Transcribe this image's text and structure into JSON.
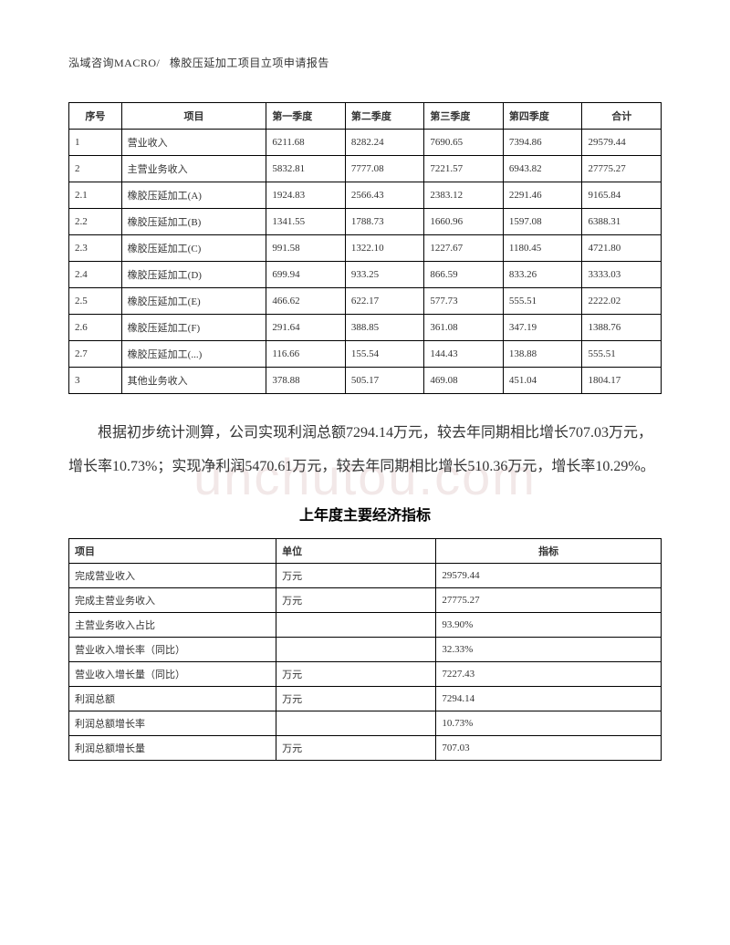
{
  "header": {
    "company": "泓域咨询MACRO/",
    "title": "橡胶压延加工项目立项申请报告"
  },
  "watermark": "unchutou.com",
  "table1": {
    "headers": {
      "seq": "序号",
      "item": "项目",
      "q1": "第一季度",
      "q2": "第二季度",
      "q3": "第三季度",
      "q4": "第四季度",
      "total": "合计"
    },
    "rows": [
      {
        "seq": "1",
        "item": "营业收入",
        "q1": "6211.68",
        "q2": "8282.24",
        "q3": "7690.65",
        "q4": "7394.86",
        "total": "29579.44"
      },
      {
        "seq": "2",
        "item": "主营业务收入",
        "q1": "5832.81",
        "q2": "7777.08",
        "q3": "7221.57",
        "q4": "6943.82",
        "total": "27775.27"
      },
      {
        "seq": "2.1",
        "item": "橡胶压延加工(A)",
        "q1": "1924.83",
        "q2": "2566.43",
        "q3": "2383.12",
        "q4": "2291.46",
        "total": "9165.84"
      },
      {
        "seq": "2.2",
        "item": "橡胶压延加工(B)",
        "q1": "1341.55",
        "q2": "1788.73",
        "q3": "1660.96",
        "q4": "1597.08",
        "total": "6388.31"
      },
      {
        "seq": "2.3",
        "item": "橡胶压延加工(C)",
        "q1": "991.58",
        "q2": "1322.10",
        "q3": "1227.67",
        "q4": "1180.45",
        "total": "4721.80"
      },
      {
        "seq": "2.4",
        "item": "橡胶压延加工(D)",
        "q1": "699.94",
        "q2": "933.25",
        "q3": "866.59",
        "q4": "833.26",
        "total": "3333.03"
      },
      {
        "seq": "2.5",
        "item": "橡胶压延加工(E)",
        "q1": "466.62",
        "q2": "622.17",
        "q3": "577.73",
        "q4": "555.51",
        "total": "2222.02"
      },
      {
        "seq": "2.6",
        "item": "橡胶压延加工(F)",
        "q1": "291.64",
        "q2": "388.85",
        "q3": "361.08",
        "q4": "347.19",
        "total": "1388.76"
      },
      {
        "seq": "2.7",
        "item": "橡胶压延加工(...)",
        "q1": "116.66",
        "q2": "155.54",
        "q3": "144.43",
        "q4": "138.88",
        "total": "555.51"
      },
      {
        "seq": "3",
        "item": "其他业务收入",
        "q1": "378.88",
        "q2": "505.17",
        "q3": "469.08",
        "q4": "451.04",
        "total": "1804.17"
      }
    ]
  },
  "paragraph": "根据初步统计测算，公司实现利润总额7294.14万元，较去年同期相比增长707.03万元，增长率10.73%；实现净利润5470.61万元，较去年同期相比增长510.36万元，增长率10.29%。",
  "section_title": "上年度主要经济指标",
  "table2": {
    "headers": {
      "project": "项目",
      "unit": "单位",
      "indicator": "指标"
    },
    "rows": [
      {
        "project": "完成营业收入",
        "unit": "万元",
        "indicator": "29579.44"
      },
      {
        "project": "完成主营业务收入",
        "unit": "万元",
        "indicator": "27775.27"
      },
      {
        "project": "主营业务收入占比",
        "unit": "",
        "indicator": "93.90%"
      },
      {
        "project": "营业收入增长率（同比）",
        "unit": "",
        "indicator": "32.33%"
      },
      {
        "project": "营业收入增长量（同比）",
        "unit": "万元",
        "indicator": "7227.43"
      },
      {
        "project": "利润总额",
        "unit": "万元",
        "indicator": "7294.14"
      },
      {
        "project": "利润总额增长率",
        "unit": "",
        "indicator": "10.73%"
      },
      {
        "project": "利润总额增长量",
        "unit": "万元",
        "indicator": "707.03"
      }
    ]
  }
}
